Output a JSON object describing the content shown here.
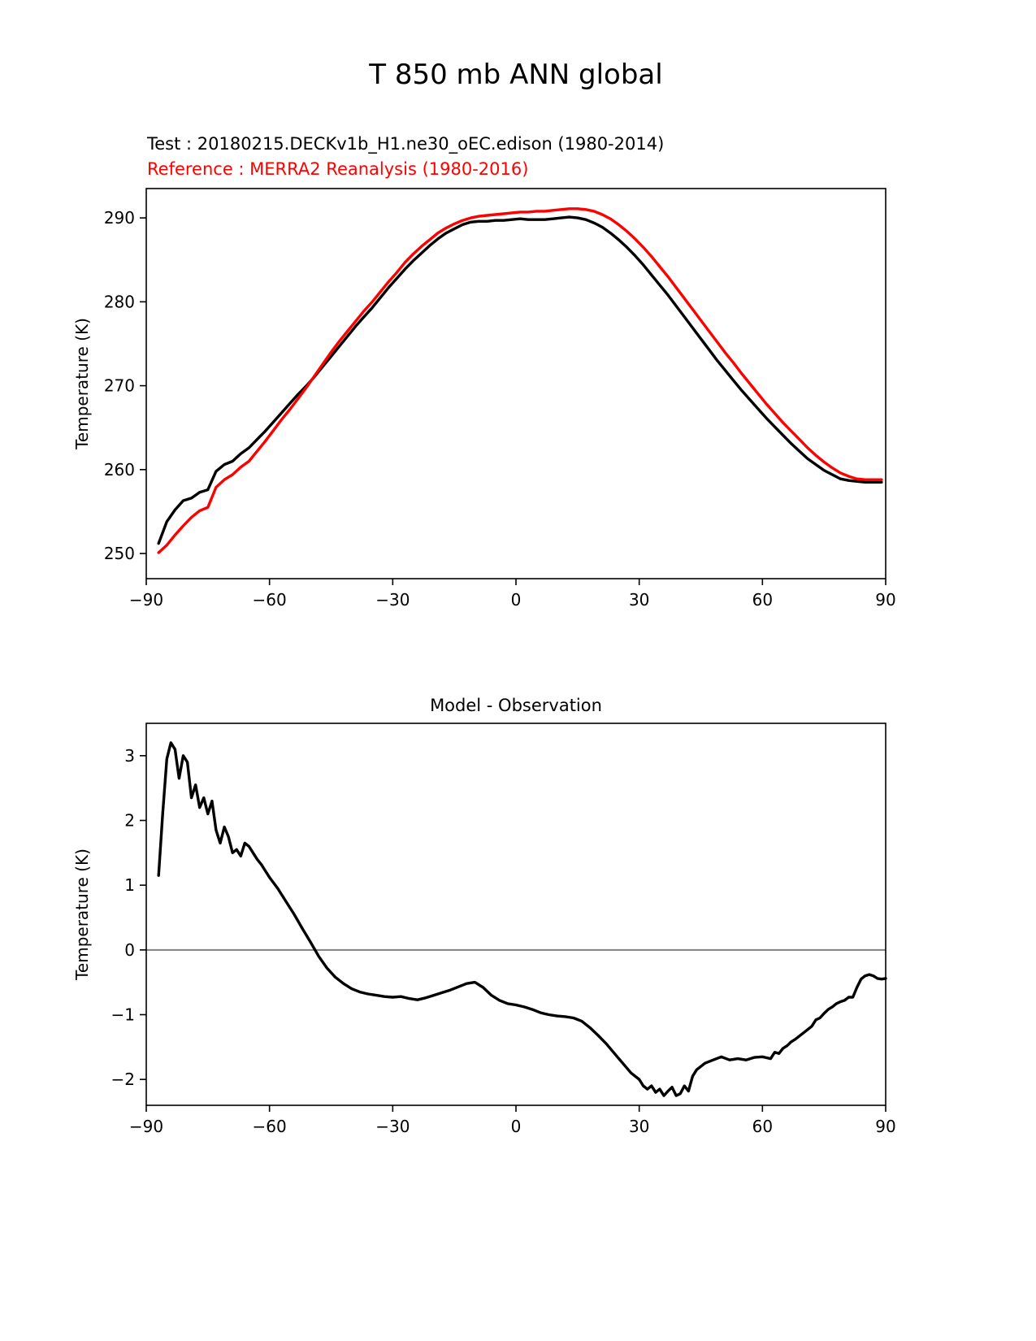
{
  "page": {
    "title": "T 850 mb ANN global"
  },
  "legend": {
    "test_label": "Test : 20180215.DECKv1b_H1.ne30_oEC.edison (1980-2014)",
    "reference_label": "Reference : MERRA2 Reanalysis (1980-2016)",
    "test_color": "#000000",
    "reference_color": "#ff0000"
  },
  "chart_data": [
    {
      "type": "line",
      "title": "T 850 mb ANN global",
      "xlabel": "",
      "ylabel": "Temperature (K)",
      "xlim": [
        -90,
        90
      ],
      "ylim": [
        247,
        293.5
      ],
      "xticks": [
        -90,
        -60,
        -30,
        0,
        30,
        60,
        90
      ],
      "yticks": [
        250,
        260,
        270,
        280,
        290
      ],
      "grid": false,
      "legend_position": "above-left",
      "series": [
        {
          "name": "Test : 20180215.DECKv1b_H1.ne30_oEC.edison (1980-2014)",
          "color": "#000000",
          "x": [
            -87,
            -85,
            -83,
            -81,
            -79,
            -77,
            -75,
            -73,
            -71,
            -69,
            -67,
            -65,
            -63,
            -61,
            -59,
            -57,
            -55,
            -53,
            -51,
            -49,
            -47,
            -45,
            -43,
            -41,
            -39,
            -37,
            -35,
            -33,
            -31,
            -29,
            -27,
            -25,
            -23,
            -21,
            -19,
            -17,
            -15,
            -13,
            -11,
            -9,
            -7,
            -5,
            -3,
            -1,
            1,
            3,
            5,
            7,
            9,
            11,
            13,
            15,
            17,
            19,
            21,
            23,
            25,
            27,
            29,
            31,
            33,
            35,
            37,
            39,
            41,
            43,
            45,
            47,
            49,
            51,
            53,
            55,
            57,
            59,
            61,
            63,
            65,
            67,
            69,
            71,
            73,
            75,
            77,
            79,
            81,
            83,
            85,
            87,
            89
          ],
          "y": [
            251.2,
            253.8,
            255.2,
            256.3,
            256.6,
            257.3,
            257.6,
            259.8,
            260.6,
            261.0,
            261.9,
            262.6,
            263.6,
            264.6,
            265.7,
            266.8,
            267.9,
            269.0,
            270.0,
            271.1,
            272.3,
            273.5,
            274.7,
            275.9,
            277.1,
            278.2,
            279.3,
            280.5,
            281.7,
            282.8,
            283.9,
            284.9,
            285.8,
            286.7,
            287.5,
            288.2,
            288.7,
            289.2,
            289.5,
            289.6,
            289.6,
            289.7,
            289.7,
            289.8,
            289.9,
            289.8,
            289.8,
            289.8,
            289.9,
            290.0,
            290.1,
            290.0,
            289.8,
            289.4,
            288.9,
            288.2,
            287.4,
            286.5,
            285.5,
            284.4,
            283.2,
            282.0,
            280.8,
            279.5,
            278.2,
            276.9,
            275.6,
            274.3,
            273.0,
            271.8,
            270.6,
            269.4,
            268.3,
            267.2,
            266.1,
            265.1,
            264.1,
            263.1,
            262.2,
            261.3,
            260.6,
            259.9,
            259.4,
            258.9,
            258.7,
            258.6,
            258.5,
            258.5,
            258.5
          ]
        },
        {
          "name": "Reference : MERRA2 Reanalysis (1980-2016)",
          "color": "#ff0000",
          "x": [
            -87,
            -85,
            -83,
            -81,
            -79,
            -77,
            -75,
            -73,
            -71,
            -69,
            -67,
            -65,
            -63,
            -61,
            -59,
            -57,
            -55,
            -53,
            -51,
            -49,
            -47,
            -45,
            -43,
            -41,
            -39,
            -37,
            -35,
            -33,
            -31,
            -29,
            -27,
            -25,
            -23,
            -21,
            -19,
            -17,
            -15,
            -13,
            -11,
            -9,
            -7,
            -5,
            -3,
            -1,
            1,
            3,
            5,
            7,
            9,
            11,
            13,
            15,
            17,
            19,
            21,
            23,
            25,
            27,
            29,
            31,
            33,
            35,
            37,
            39,
            41,
            43,
            45,
            47,
            49,
            51,
            53,
            55,
            57,
            59,
            61,
            63,
            65,
            67,
            69,
            71,
            73,
            75,
            77,
            79,
            81,
            83,
            85,
            87,
            89
          ],
          "y": [
            250.1,
            251.0,
            252.2,
            253.3,
            254.3,
            255.1,
            255.5,
            257.9,
            258.8,
            259.4,
            260.3,
            261.0,
            262.2,
            263.4,
            264.7,
            266.0,
            267.2,
            268.5,
            269.8,
            271.2,
            272.6,
            274.0,
            275.3,
            276.5,
            277.7,
            278.9,
            280.0,
            281.2,
            282.4,
            283.5,
            284.7,
            285.7,
            286.6,
            287.4,
            288.2,
            288.8,
            289.3,
            289.7,
            290.0,
            290.2,
            290.3,
            290.4,
            290.5,
            290.6,
            290.7,
            290.7,
            290.8,
            290.8,
            290.9,
            291.0,
            291.1,
            291.1,
            291.0,
            290.8,
            290.4,
            289.9,
            289.2,
            288.4,
            287.5,
            286.5,
            285.4,
            284.2,
            283.0,
            281.7,
            280.4,
            279.1,
            277.8,
            276.5,
            275.2,
            273.9,
            272.7,
            271.4,
            270.2,
            269.0,
            267.8,
            266.7,
            265.6,
            264.6,
            263.6,
            262.6,
            261.7,
            260.9,
            260.2,
            259.6,
            259.2,
            258.9,
            258.8,
            258.8,
            258.8
          ]
        }
      ]
    },
    {
      "type": "line",
      "title": "Model - Observation",
      "xlabel": "",
      "ylabel": "Temperature (K)",
      "xlim": [
        -90,
        90
      ],
      "ylim": [
        -2.4,
        3.5
      ],
      "xticks": [
        -90,
        -60,
        -30,
        0,
        30,
        60,
        90
      ],
      "yticks": [
        -2,
        -1,
        0,
        1,
        2,
        3
      ],
      "grid": false,
      "zero_line": true,
      "zero_line_color": "#808080",
      "series": [
        {
          "name": "Model - Observation",
          "color": "#000000",
          "x": [
            -87,
            -86,
            -85,
            -84,
            -83,
            -82,
            -81,
            -80,
            -79,
            -78,
            -77,
            -76,
            -75,
            -74,
            -73,
            -72,
            -71,
            -70,
            -69,
            -68,
            -67,
            -66,
            -65,
            -64,
            -63,
            -62,
            -61,
            -60,
            -58,
            -56,
            -54,
            -52,
            -50,
            -48,
            -46,
            -44,
            -42,
            -40,
            -38,
            -36,
            -34,
            -32,
            -30,
            -28,
            -26,
            -24,
            -22,
            -20,
            -18,
            -16,
            -14,
            -12,
            -10,
            -8,
            -6,
            -4,
            -2,
            0,
            2,
            4,
            6,
            8,
            10,
            12,
            14,
            16,
            18,
            20,
            22,
            24,
            26,
            28,
            30,
            31,
            32,
            33,
            34,
            35,
            36,
            37,
            38,
            39,
            40,
            41,
            42,
            43,
            44,
            45,
            46,
            48,
            50,
            52,
            54,
            56,
            58,
            60,
            62,
            63,
            64,
            65,
            66,
            67,
            68,
            70,
            72,
            73,
            74,
            75,
            76,
            77,
            78,
            79,
            80,
            81,
            82,
            83,
            84,
            85,
            86,
            87,
            88,
            89,
            90
          ],
          "y": [
            1.15,
            2.1,
            2.95,
            3.2,
            3.1,
            2.65,
            3.0,
            2.9,
            2.35,
            2.55,
            2.2,
            2.35,
            2.1,
            2.3,
            1.85,
            1.65,
            1.9,
            1.75,
            1.5,
            1.55,
            1.45,
            1.65,
            1.6,
            1.5,
            1.4,
            1.32,
            1.22,
            1.12,
            0.95,
            0.75,
            0.55,
            0.33,
            0.12,
            -0.1,
            -0.28,
            -0.42,
            -0.52,
            -0.6,
            -0.65,
            -0.68,
            -0.7,
            -0.72,
            -0.73,
            -0.72,
            -0.75,
            -0.77,
            -0.74,
            -0.7,
            -0.66,
            -0.62,
            -0.57,
            -0.52,
            -0.5,
            -0.58,
            -0.7,
            -0.78,
            -0.83,
            -0.85,
            -0.88,
            -0.92,
            -0.97,
            -1.0,
            -1.02,
            -1.03,
            -1.05,
            -1.1,
            -1.2,
            -1.32,
            -1.45,
            -1.6,
            -1.75,
            -1.9,
            -2.0,
            -2.1,
            -2.15,
            -2.1,
            -2.2,
            -2.15,
            -2.25,
            -2.18,
            -2.12,
            -2.25,
            -2.22,
            -2.1,
            -2.18,
            -1.95,
            -1.85,
            -1.8,
            -1.75,
            -1.7,
            -1.65,
            -1.7,
            -1.68,
            -1.7,
            -1.66,
            -1.65,
            -1.68,
            -1.58,
            -1.6,
            -1.52,
            -1.48,
            -1.42,
            -1.38,
            -1.28,
            -1.18,
            -1.08,
            -1.05,
            -0.98,
            -0.92,
            -0.88,
            -0.83,
            -0.8,
            -0.78,
            -0.73,
            -0.73,
            -0.58,
            -0.45,
            -0.4,
            -0.38,
            -0.4,
            -0.44,
            -0.45,
            -0.44
          ]
        }
      ]
    }
  ]
}
